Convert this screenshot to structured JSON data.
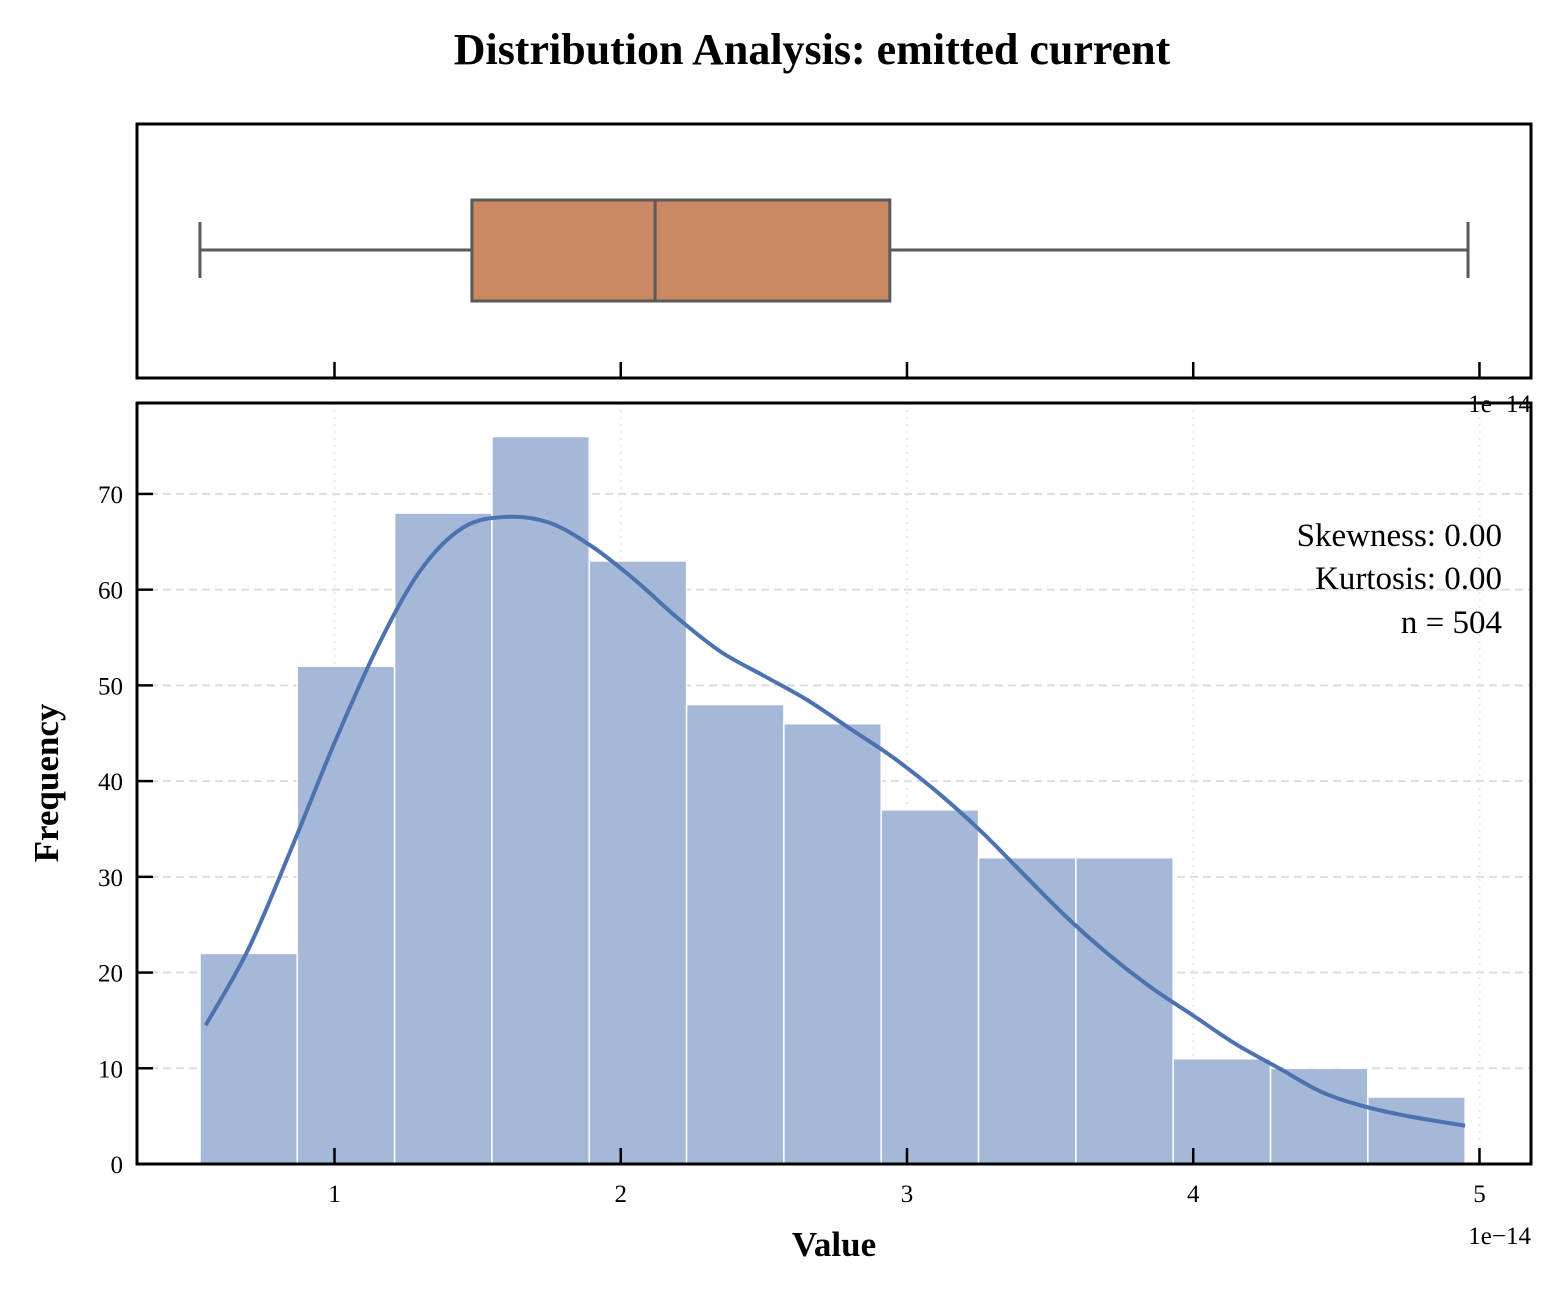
{
  "chart_data": {
    "type": "bar",
    "title": "Distribution Analysis: emitted current",
    "xlabel": "Value",
    "ylabel": "Frequency",
    "x_offset_label": "1e−14",
    "x_scale": 1e-14,
    "xlim": [
      0.31,
      5.18
    ],
    "ylim": [
      0,
      79.5
    ],
    "x_ticks": [
      1,
      2,
      3,
      4,
      5
    ],
    "x_tick_labels": [
      "1",
      "2",
      "3",
      "4",
      "5"
    ],
    "y_ticks": [
      0,
      10,
      20,
      30,
      40,
      50,
      60,
      70
    ],
    "y_tick_labels": [
      "0",
      "10",
      "20",
      "30",
      "40",
      "50",
      "60",
      "70"
    ],
    "grid": true,
    "histogram": {
      "bin_edges": [
        0.53,
        0.87,
        1.21,
        1.55,
        1.89,
        2.23,
        2.57,
        2.91,
        3.25,
        3.59,
        3.93,
        4.27,
        4.61,
        4.95
      ],
      "counts": [
        22,
        52,
        68,
        76,
        63,
        48,
        46,
        37,
        32,
        32,
        11,
        10,
        7
      ],
      "color": "#a5b8d7"
    },
    "kde": {
      "color": "#4c72b0",
      "x": [
        0.55,
        0.7,
        0.85,
        1.0,
        1.15,
        1.3,
        1.45,
        1.6,
        1.75,
        1.9,
        2.05,
        2.2,
        2.35,
        2.5,
        2.65,
        2.8,
        2.95,
        3.1,
        3.25,
        3.4,
        3.55,
        3.7,
        3.85,
        4.0,
        4.15,
        4.3,
        4.45,
        4.6,
        4.75,
        4.95
      ],
      "y": [
        14.5,
        22.5,
        33,
        44,
        54,
        62,
        66.5,
        67.6,
        67,
        64.5,
        61,
        57,
        53.5,
        51,
        48.5,
        45.5,
        42.5,
        39,
        35,
        30.5,
        26,
        22,
        18.5,
        15.5,
        12.5,
        10,
        7.5,
        6,
        5,
        4
      ]
    },
    "boxplot": {
      "whisker_low": 0.53,
      "q1": 1.48,
      "median": 2.12,
      "q3": 2.94,
      "whisker_high": 4.96,
      "color": "#cb8963"
    },
    "annotations": [
      "Skewness: 0.00",
      "Kurtosis: 0.00",
      "n = 504"
    ]
  }
}
